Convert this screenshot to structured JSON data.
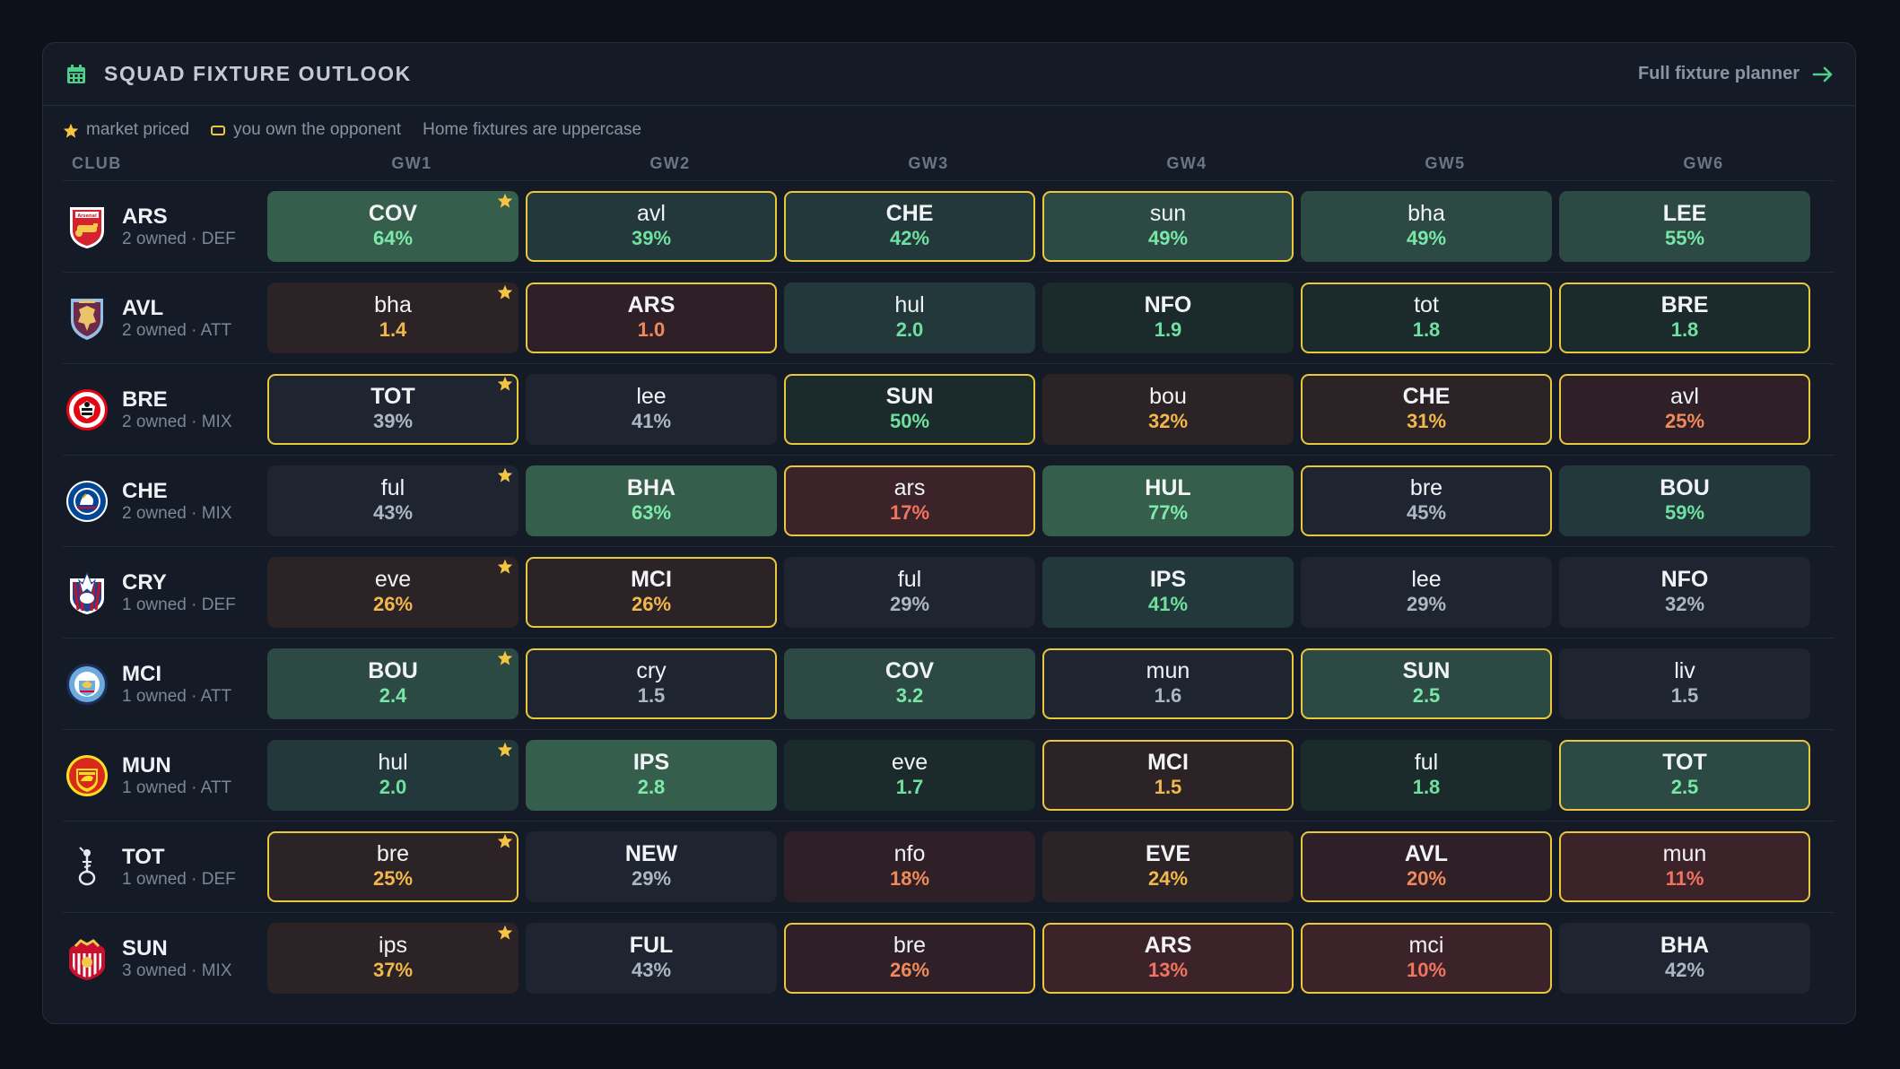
{
  "header": {
    "title": "SQUAD FIXTURE OUTLOOK",
    "link_label": "Full fixture planner"
  },
  "legend": {
    "market_priced": "market priced",
    "owned_opponent": "you own the opponent",
    "home_note": "Home fixtures are uppercase"
  },
  "columns": {
    "club": "CLUB",
    "gws": [
      "GW1",
      "GW2",
      "GW3",
      "GW4",
      "GW5",
      "GW6"
    ]
  },
  "colors": {
    "star": "#f5c542",
    "owned_border": "#e9c83d",
    "green_text": "#6fe0a0",
    "amber_text": "#f2b84b",
    "red_text": "#f2735f",
    "neutral_text": "#b7bfcc"
  },
  "rows": [
    {
      "code": "ARS",
      "meta": "2 owned · DEF",
      "crest": "arsenal-crest",
      "fixtures": [
        {
          "opp": "COV",
          "val": "64%",
          "tone": "g3",
          "owned": false,
          "priced": true
        },
        {
          "opp": "avl",
          "val": "39%",
          "tone": "g1",
          "owned": true,
          "priced": false
        },
        {
          "opp": "CHE",
          "val": "42%",
          "tone": "g1",
          "owned": true,
          "priced": false
        },
        {
          "opp": "sun",
          "val": "49%",
          "tone": "g2",
          "owned": true,
          "priced": false
        },
        {
          "opp": "bha",
          "val": "49%",
          "tone": "g2",
          "owned": false,
          "priced": false
        },
        {
          "opp": "LEE",
          "val": "55%",
          "tone": "g2",
          "owned": false,
          "priced": false
        }
      ]
    },
    {
      "code": "AVL",
      "meta": "2 owned · ATT",
      "crest": "aston-villa-crest",
      "fixtures": [
        {
          "opp": "bha",
          "val": "1.4",
          "tone": "a1",
          "owned": false,
          "priced": true
        },
        {
          "opp": "ARS",
          "val": "1.0",
          "tone": "r1",
          "owned": true,
          "priced": false
        },
        {
          "opp": "hul",
          "val": "2.0",
          "tone": "g1",
          "owned": false,
          "priced": false
        },
        {
          "opp": "NFO",
          "val": "1.9",
          "tone": "g0",
          "owned": false,
          "priced": false
        },
        {
          "opp": "tot",
          "val": "1.8",
          "tone": "g0",
          "owned": true,
          "priced": false
        },
        {
          "opp": "BRE",
          "val": "1.8",
          "tone": "g0",
          "owned": true,
          "priced": false
        }
      ]
    },
    {
      "code": "BRE",
      "meta": "2 owned · MIX",
      "crest": "brentford-crest",
      "fixtures": [
        {
          "opp": "TOT",
          "val": "39%",
          "tone": "n",
          "owned": true,
          "priced": true
        },
        {
          "opp": "lee",
          "val": "41%",
          "tone": "n",
          "owned": false,
          "priced": false
        },
        {
          "opp": "SUN",
          "val": "50%",
          "tone": "g0",
          "owned": true,
          "priced": false
        },
        {
          "opp": "bou",
          "val": "32%",
          "tone": "a1",
          "owned": false,
          "priced": false
        },
        {
          "opp": "CHE",
          "val": "31%",
          "tone": "a1",
          "owned": true,
          "priced": false
        },
        {
          "opp": "avl",
          "val": "25%",
          "tone": "r1",
          "owned": true,
          "priced": false
        }
      ]
    },
    {
      "code": "CHE",
      "meta": "2 owned · MIX",
      "crest": "chelsea-crest",
      "fixtures": [
        {
          "opp": "ful",
          "val": "43%",
          "tone": "n",
          "owned": false,
          "priced": true
        },
        {
          "opp": "BHA",
          "val": "63%",
          "tone": "g3",
          "owned": false,
          "priced": false
        },
        {
          "opp": "ars",
          "val": "17%",
          "tone": "r2",
          "owned": true,
          "priced": false
        },
        {
          "opp": "HUL",
          "val": "77%",
          "tone": "g3",
          "owned": false,
          "priced": false
        },
        {
          "opp": "bre",
          "val": "45%",
          "tone": "n",
          "owned": true,
          "priced": false
        },
        {
          "opp": "BOU",
          "val": "59%",
          "tone": "g1",
          "owned": false,
          "priced": false
        }
      ]
    },
    {
      "code": "CRY",
      "meta": "1 owned · DEF",
      "crest": "crystal-palace-crest",
      "fixtures": [
        {
          "opp": "eve",
          "val": "26%",
          "tone": "a1",
          "owned": false,
          "priced": true
        },
        {
          "opp": "MCI",
          "val": "26%",
          "tone": "a1",
          "owned": true,
          "priced": false
        },
        {
          "opp": "ful",
          "val": "29%",
          "tone": "n",
          "owned": false,
          "priced": false
        },
        {
          "opp": "IPS",
          "val": "41%",
          "tone": "g1",
          "owned": false,
          "priced": false
        },
        {
          "opp": "lee",
          "val": "29%",
          "tone": "n",
          "owned": false,
          "priced": false
        },
        {
          "opp": "NFO",
          "val": "32%",
          "tone": "n",
          "owned": false,
          "priced": false
        }
      ]
    },
    {
      "code": "MCI",
      "meta": "1 owned · ATT",
      "crest": "man-city-crest",
      "fixtures": [
        {
          "opp": "BOU",
          "val": "2.4",
          "tone": "g2",
          "owned": false,
          "priced": true
        },
        {
          "opp": "cry",
          "val": "1.5",
          "tone": "n",
          "owned": true,
          "priced": false
        },
        {
          "opp": "COV",
          "val": "3.2",
          "tone": "g2",
          "owned": false,
          "priced": false
        },
        {
          "opp": "mun",
          "val": "1.6",
          "tone": "n",
          "owned": true,
          "priced": false
        },
        {
          "opp": "SUN",
          "val": "2.5",
          "tone": "g2",
          "owned": true,
          "priced": false
        },
        {
          "opp": "liv",
          "val": "1.5",
          "tone": "n",
          "owned": false,
          "priced": false
        }
      ]
    },
    {
      "code": "MUN",
      "meta": "1 owned · ATT",
      "crest": "man-united-crest",
      "fixtures": [
        {
          "opp": "hul",
          "val": "2.0",
          "tone": "g1",
          "owned": false,
          "priced": true
        },
        {
          "opp": "IPS",
          "val": "2.8",
          "tone": "g3",
          "owned": false,
          "priced": false
        },
        {
          "opp": "eve",
          "val": "1.7",
          "tone": "g0",
          "owned": false,
          "priced": false
        },
        {
          "opp": "MCI",
          "val": "1.5",
          "tone": "a1",
          "owned": true,
          "priced": false
        },
        {
          "opp": "ful",
          "val": "1.8",
          "tone": "g0",
          "owned": false,
          "priced": false
        },
        {
          "opp": "TOT",
          "val": "2.5",
          "tone": "g2",
          "owned": true,
          "priced": false
        }
      ]
    },
    {
      "code": "TOT",
      "meta": "1 owned · DEF",
      "crest": "tottenham-crest",
      "fixtures": [
        {
          "opp": "bre",
          "val": "25%",
          "tone": "a1",
          "owned": true,
          "priced": true
        },
        {
          "opp": "NEW",
          "val": "29%",
          "tone": "n",
          "owned": false,
          "priced": false
        },
        {
          "opp": "nfo",
          "val": "18%",
          "tone": "r1",
          "owned": false,
          "priced": false
        },
        {
          "opp": "EVE",
          "val": "24%",
          "tone": "a1",
          "owned": false,
          "priced": false
        },
        {
          "opp": "AVL",
          "val": "20%",
          "tone": "r1",
          "owned": true,
          "priced": false
        },
        {
          "opp": "mun",
          "val": "11%",
          "tone": "r2",
          "owned": true,
          "priced": false
        }
      ]
    },
    {
      "code": "SUN",
      "meta": "3 owned · MIX",
      "crest": "sunderland-crest",
      "fixtures": [
        {
          "opp": "ips",
          "val": "37%",
          "tone": "a1",
          "owned": false,
          "priced": true
        },
        {
          "opp": "FUL",
          "val": "43%",
          "tone": "n",
          "owned": false,
          "priced": false
        },
        {
          "opp": "bre",
          "val": "26%",
          "tone": "r1",
          "owned": true,
          "priced": false
        },
        {
          "opp": "ARS",
          "val": "13%",
          "tone": "r2",
          "owned": true,
          "priced": false
        },
        {
          "opp": "mci",
          "val": "10%",
          "tone": "r2",
          "owned": true,
          "priced": false
        },
        {
          "opp": "BHA",
          "val": "42%",
          "tone": "n",
          "owned": false,
          "priced": false
        }
      ]
    }
  ]
}
